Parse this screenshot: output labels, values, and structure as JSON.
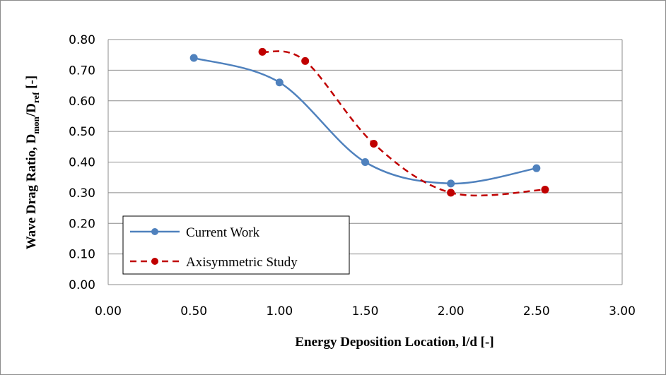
{
  "chart_data": {
    "type": "line",
    "xlabel": "Energy Deposition Location, l/d [-]",
    "ylabel": "Wave Drag Ratio, D",
    "ylabel_sub1": "mon",
    "ylabel_mid": "/D",
    "ylabel_sub2": "ref",
    "ylabel_end": " [-]",
    "xlim": [
      0,
      3
    ],
    "ylim": [
      0,
      0.8
    ],
    "xticks": [
      "0.00",
      "0.50",
      "1.00",
      "1.50",
      "2.00",
      "2.50",
      "3.00"
    ],
    "yticks": [
      "0.00",
      "0.10",
      "0.20",
      "0.30",
      "0.40",
      "0.50",
      "0.60",
      "0.70",
      "0.80"
    ],
    "grid": "horizontal",
    "legend_position": "bottom-left",
    "series": [
      {
        "name": "Current Work",
        "color": "#4f81bd",
        "style": "solid",
        "x": [
          0.5,
          1.0,
          1.5,
          2.0,
          2.5
        ],
        "y": [
          0.74,
          0.66,
          0.4,
          0.33,
          0.38
        ]
      },
      {
        "name": "Axisymmetric Study",
        "color": "#c00000",
        "style": "dashed",
        "x": [
          0.9,
          1.15,
          1.55,
          2.0,
          2.55
        ],
        "y": [
          0.76,
          0.73,
          0.46,
          0.3,
          0.31
        ]
      }
    ]
  }
}
